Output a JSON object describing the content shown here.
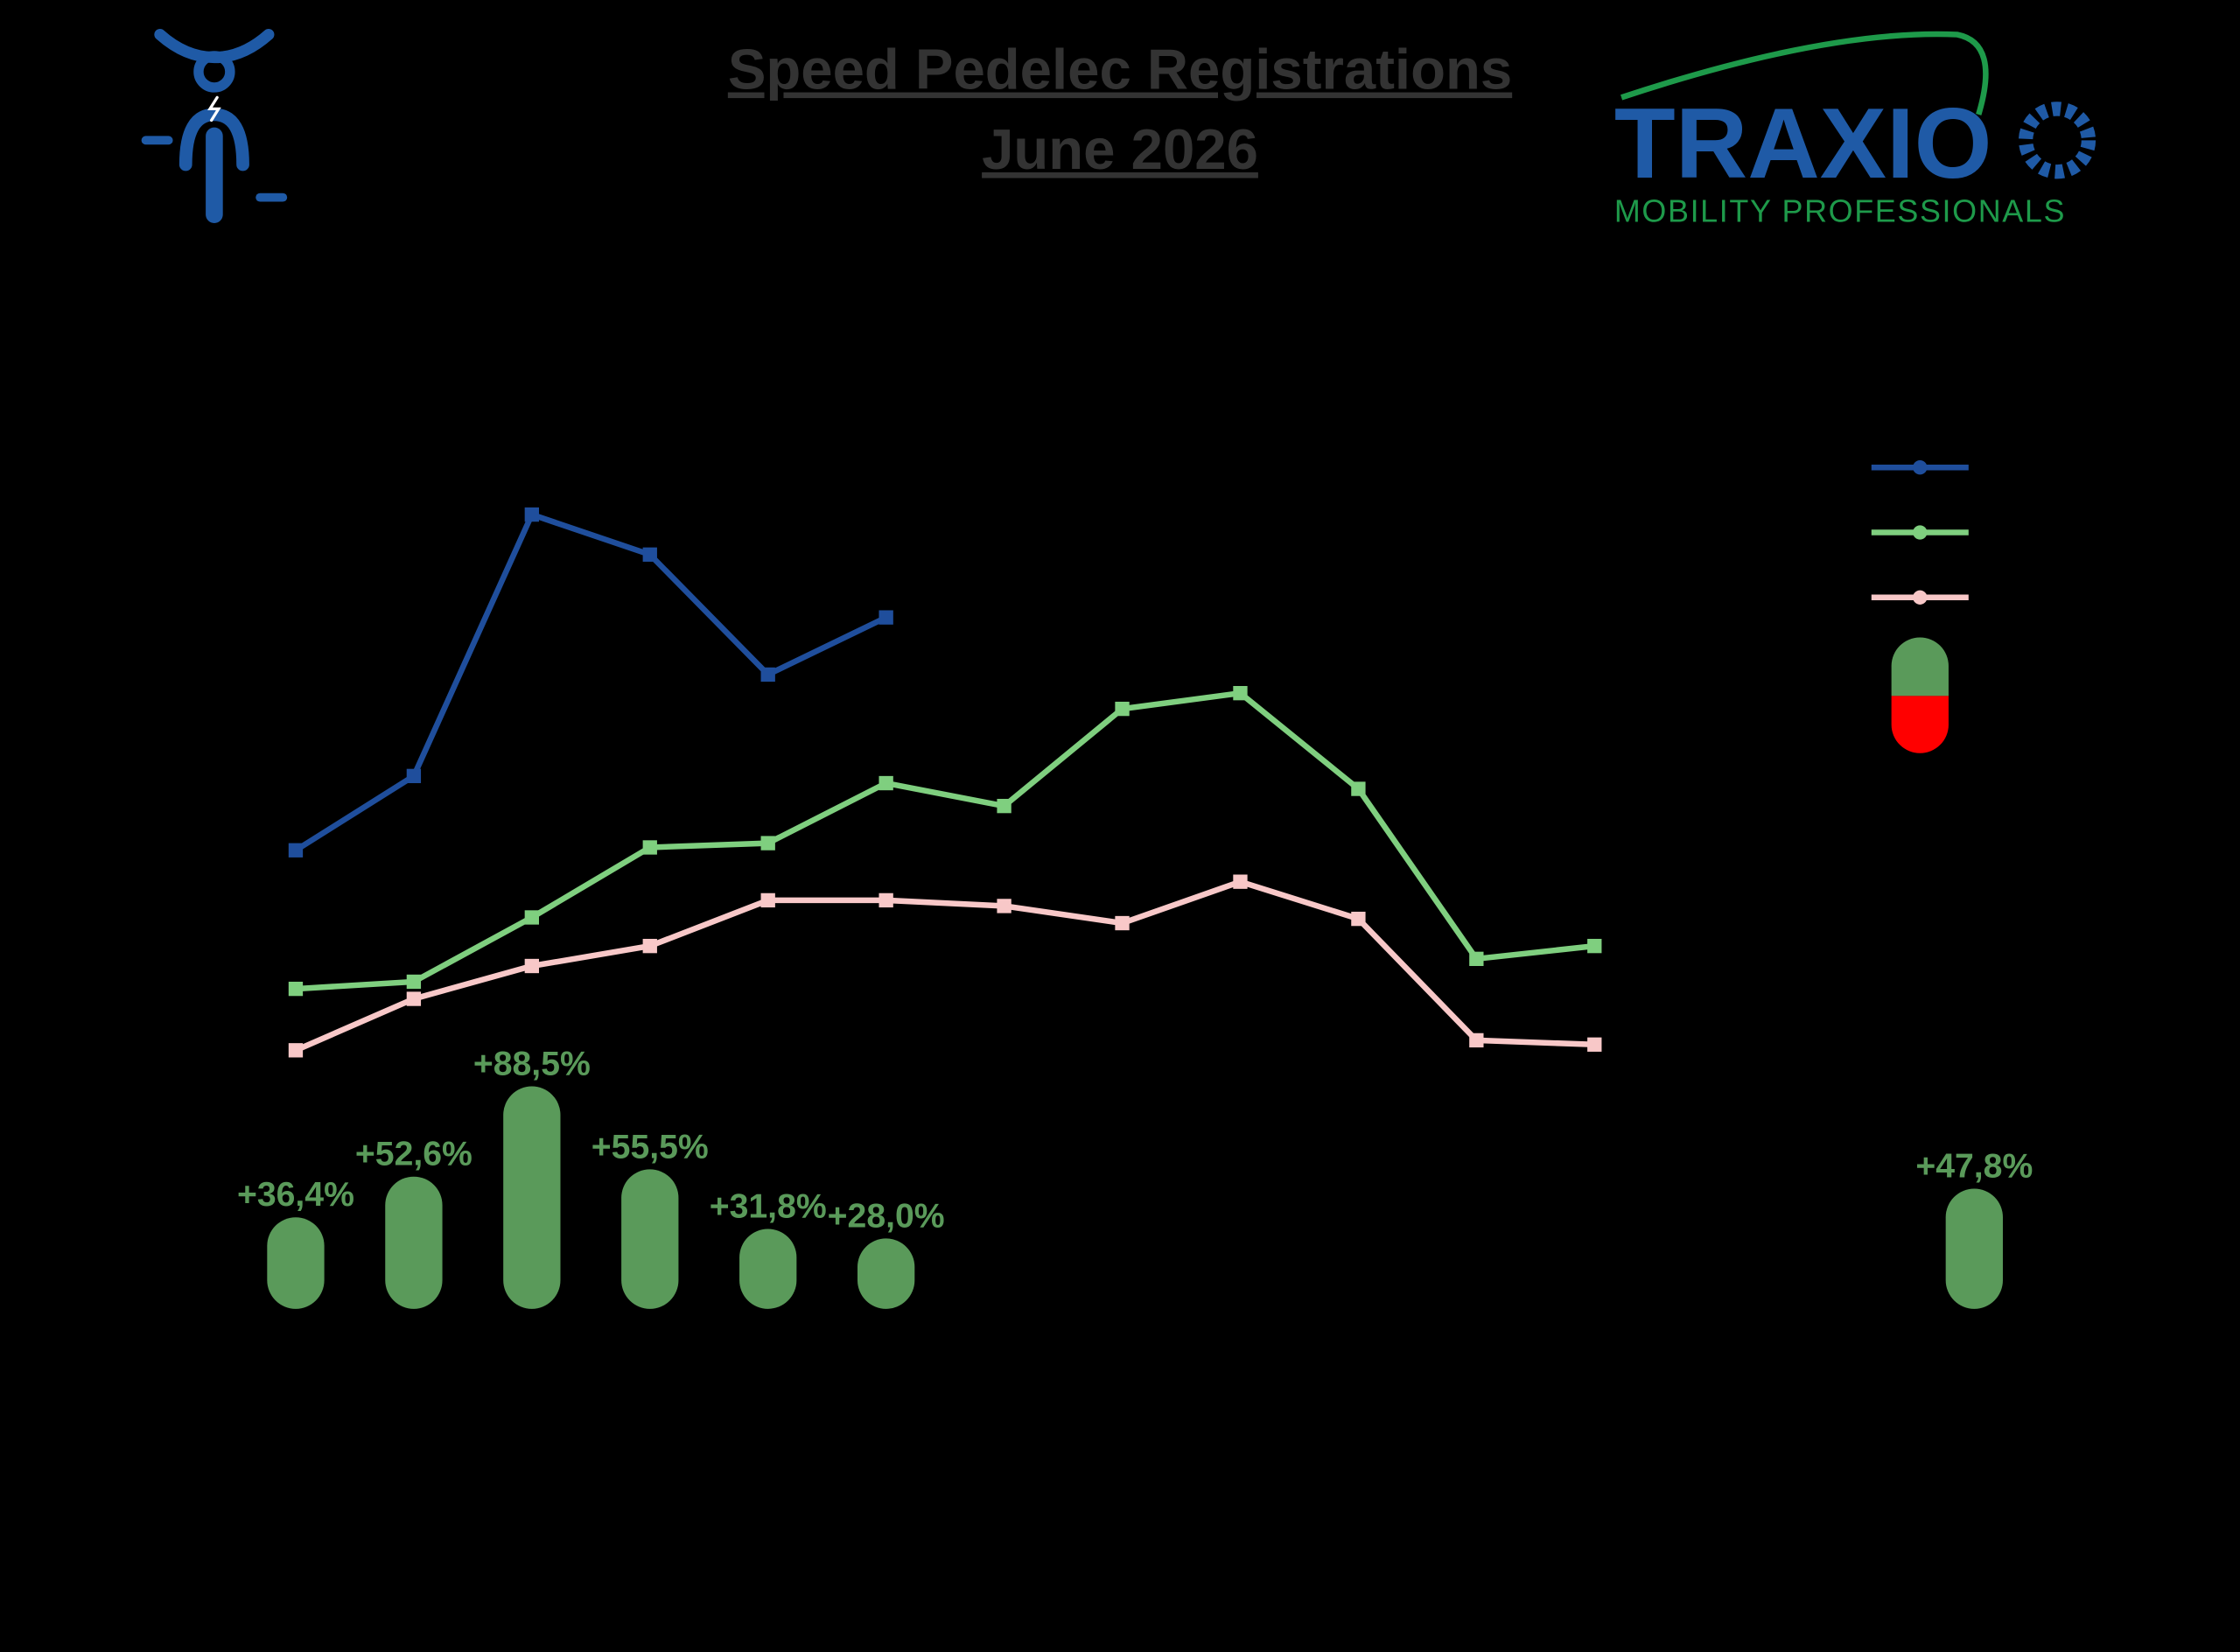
{
  "chart_data": [
    {
      "type": "line",
      "title": "Speed Pedelec Registrations",
      "subtitle": "June 2026",
      "categories": [
        null,
        null,
        null,
        null,
        null,
        null,
        null,
        null,
        null,
        null,
        null,
        null
      ],
      "ylim": [
        0,
        600
      ],
      "series": [
        {
          "color": "#1f4e9c",
          "values": [
            321,
            373,
            556,
            528,
            444,
            484,
            null,
            null,
            null,
            null,
            null,
            null
          ]
        },
        {
          "color": "#7fcf7f",
          "values": [
            224,
            229,
            274,
            323,
            326,
            368,
            352,
            420,
            431,
            364,
            245,
            254
          ]
        },
        {
          "color": "#f8c8c8",
          "values": [
            181,
            217,
            240,
            254,
            286,
            286,
            282,
            270,
            299,
            273,
            188,
            185
          ]
        }
      ]
    },
    {
      "type": "bar",
      "categories": [
        null,
        null,
        null,
        null,
        null,
        null,
        null
      ],
      "values": [
        36.4,
        52.6,
        88.5,
        55.5,
        31.8,
        28.0,
        47.8
      ],
      "value_labels": [
        "+36,4%",
        "+52,6%",
        "+88,5%",
        "+55,5%",
        "+31,8%",
        "+28,0%",
        "+47,8%"
      ],
      "ylim": [
        0,
        100
      ],
      "positive_color": "#5a9a5a",
      "negative_color": "#ff0000"
    }
  ],
  "logo": {
    "name": "TRAXIO",
    "tagline": "MOBILITY PROFESSIONALS"
  }
}
